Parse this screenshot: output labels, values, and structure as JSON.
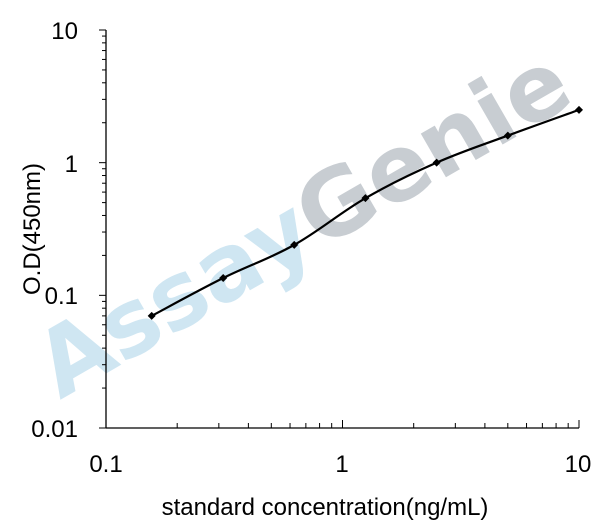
{
  "chart_data": {
    "type": "line",
    "title": "",
    "xlabel": "standard concentration(ng/mL)",
    "ylabel": "O.D(450nm)",
    "x_scale": "log",
    "y_scale": "log",
    "xlim": [
      0.1,
      10
    ],
    "ylim": [
      0.01,
      10
    ],
    "x_ticks": [
      "0.1",
      "1",
      "10"
    ],
    "y_ticks": [
      "0.01",
      "0.1",
      "1",
      "10"
    ],
    "grid": false,
    "series": [
      {
        "x": [
          0.156,
          0.313,
          0.625,
          1.25,
          2.5,
          5,
          10
        ],
        "y": [
          0.07,
          0.135,
          0.24,
          0.54,
          1.0,
          1.6,
          2.5
        ],
        "color": "#000000",
        "marker": "diamond"
      }
    ],
    "watermark": {
      "part1": "Assay",
      "part2": "Genie",
      "color1": "#cfe6f2",
      "color2": "#c8cdd2"
    }
  }
}
